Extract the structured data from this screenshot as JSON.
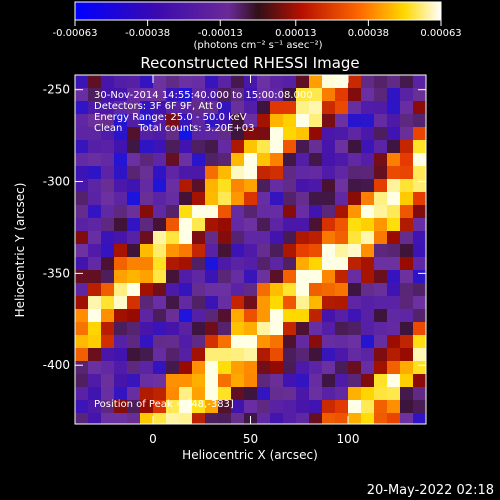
{
  "chart_data": {
    "type": "heatmap",
    "title": "Reconstructed RHESSI Image",
    "xlabel": "Heliocentric X (arcsec)",
    "ylabel": "Heliocentric Y (arcsec)",
    "xlim": [
      -40,
      140
    ],
    "ylim": [
      -432,
      -242
    ],
    "x_ticks": [
      0,
      50,
      100
    ],
    "y_ticks": [
      -250,
      -300,
      -350,
      -400
    ],
    "colorbar": {
      "units": "(photons cm⁻² s⁻¹ asec⁻²)",
      "range": [
        -0.00063,
        0.00063
      ],
      "tick_values": [
        -0.00063,
        -0.00038,
        -0.00013,
        0.00013,
        0.00038,
        0.00063
      ],
      "tick_labels": [
        "-0.00063",
        "-0.00038",
        "-0.00013",
        "0.00013",
        "0.00038",
        "0.00063"
      ],
      "colors": [
        "#0000ff",
        "#5a00a0",
        "#7a2aa0",
        "#3a1020",
        "#c01000",
        "#ff6000",
        "#ffe000",
        "#ffffff"
      ]
    },
    "grid": false,
    "annotations": [
      "30-Nov-2014 14:55:40.000 to 15:00:08.000",
      "Detectors: 3F 6F 9F, Att 0",
      "Energy Range: 25.0 - 50.0 keV",
      "Clean     Total counts: 3.20E+03"
    ],
    "peak_label": "Position of Peak = [48,-383]",
    "peak": [
      48,
      -383
    ]
  },
  "timestamp": "20-May-2022 02:18"
}
